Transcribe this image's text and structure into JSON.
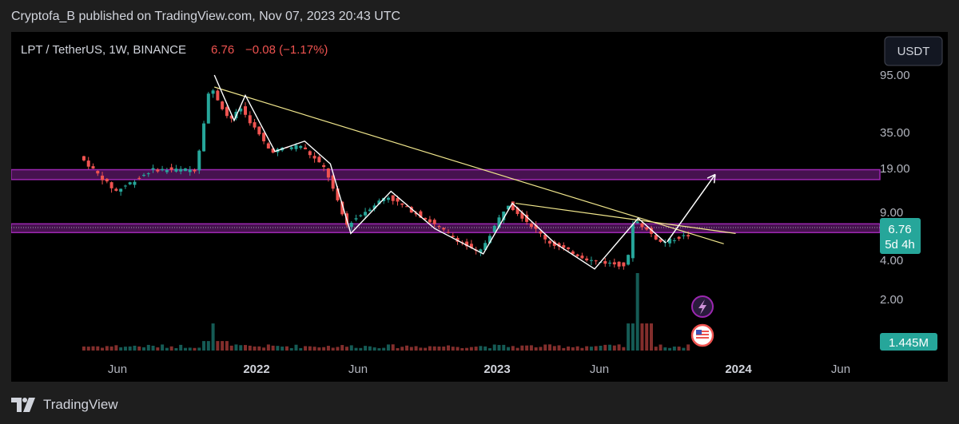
{
  "header": {
    "published_line": "Cryptofa_B published on TradingView.com, Nov 07, 2023 20:43 UTC"
  },
  "footer": {
    "brand_label": "TradingView"
  },
  "symbol_bar": {
    "symbol": "LPT / TetherUS, 1W, BINANCE",
    "price": "6.76",
    "change": "−0.08 (−1.17%)"
  },
  "currency_button": "USDT",
  "price_badge": {
    "price": "6.76",
    "countdown": "5d 4h"
  },
  "volume_badge": "1.445M",
  "colors": {
    "up": "#26a69a",
    "down": "#ef5350",
    "zone": "#9c27b0",
    "trendline": "#f0e68c",
    "pattern": "#ffffff",
    "background": "#000000"
  },
  "chart_data": {
    "type": "candlestick",
    "symbol": "LPT / TetherUS",
    "timeframe": "1W",
    "exchange": "BINANCE",
    "y_scale": "log",
    "y_ticks": [
      "95.00",
      "35.00",
      "19.00",
      "9.00",
      "4.00",
      "2.00"
    ],
    "x_ticks": [
      "Jun",
      "2022",
      "Jun",
      "2023",
      "Jun",
      "2024",
      "Jun"
    ],
    "last_price": 6.76,
    "price_path": [
      {
        "date": "2021-05-01",
        "price": 25
      },
      {
        "date": "2021-06-25",
        "price": 14
      },
      {
        "date": "2021-08-20",
        "price": 20
      },
      {
        "date": "2021-10-25",
        "price": 20
      },
      {
        "date": "2021-11-15",
        "price": 80
      },
      {
        "date": "2021-12-15",
        "price": 45
      },
      {
        "date": "2022-01-01",
        "price": 55
      },
      {
        "date": "2022-02-15",
        "price": 27
      },
      {
        "date": "2022-04-01",
        "price": 30
      },
      {
        "date": "2022-05-10",
        "price": 20
      },
      {
        "date": "2022-06-10",
        "price": 8
      },
      {
        "date": "2022-08-10",
        "price": 13
      },
      {
        "date": "2022-10-15",
        "price": 8.5
      },
      {
        "date": "2022-12-28",
        "price": 5
      },
      {
        "date": "2023-02-10",
        "price": 11.5
      },
      {
        "date": "2023-04-15",
        "price": 6
      },
      {
        "date": "2023-06-15",
        "price": 4.5
      },
      {
        "date": "2023-08-10",
        "price": 4.1
      },
      {
        "date": "2023-08-20",
        "price": 9
      },
      {
        "date": "2023-10-01",
        "price": 6
      },
      {
        "date": "2023-11-07",
        "price": 6.76
      }
    ],
    "volume_spikes": [
      {
        "date": "2021-11-15",
        "level": 0.35
      },
      {
        "date": "2023-08-20",
        "level": 1.0
      }
    ],
    "resistance_zones": [
      {
        "from": 17,
        "to": 20
      },
      {
        "from": 7.1,
        "to": 8.2
      }
    ],
    "trendlines": [
      {
        "from": {
          "date": "2021-11-15",
          "price": 78
        },
        "to": {
          "date": "2023-12-28",
          "price": 5.9
        }
      },
      {
        "from": {
          "date": "2023-02-15",
          "price": 11.5
        },
        "to": {
          "date": "2024-01-15",
          "price": 7.0
        }
      }
    ],
    "projection": [
      {
        "date": "2023-10-03",
        "price": 6.1
      },
      {
        "date": "2023-12-15",
        "price": 18.5
      }
    ]
  }
}
